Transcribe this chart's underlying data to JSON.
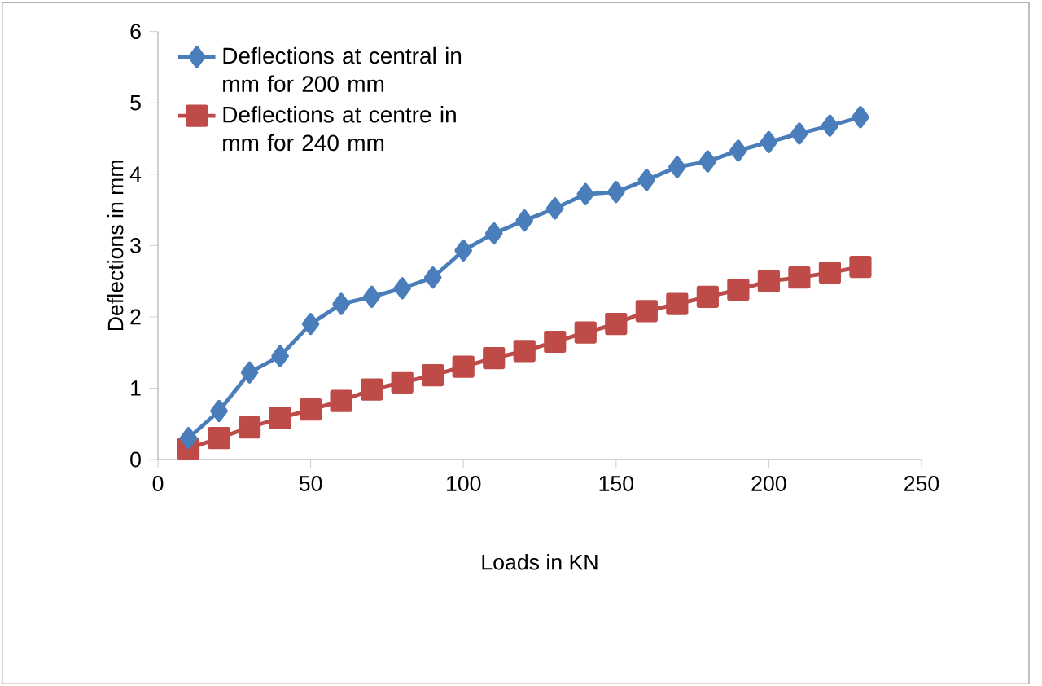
{
  "chart_data": {
    "type": "line",
    "xlabel": "Loads in KN",
    "ylabel": "Deflections  in mm",
    "x": [
      10,
      20,
      30,
      40,
      50,
      60,
      70,
      80,
      90,
      100,
      110,
      120,
      130,
      140,
      150,
      160,
      170,
      180,
      190,
      200,
      210,
      220,
      230
    ],
    "series": [
      {
        "name": "Deflections at central in mm for 200 mm",
        "color": "#4a7ebb",
        "marker": "diamond",
        "values": [
          0.3,
          0.68,
          1.22,
          1.45,
          1.9,
          2.18,
          2.28,
          2.4,
          2.55,
          2.93,
          3.17,
          3.35,
          3.52,
          3.72,
          3.75,
          3.92,
          4.1,
          4.18,
          4.33,
          4.45,
          4.57,
          4.68,
          4.8
        ]
      },
      {
        "name": "Deflections at centre in mm for 240 mm",
        "color": "#be4b48",
        "marker": "square",
        "values": [
          0.15,
          0.3,
          0.45,
          0.58,
          0.7,
          0.82,
          0.98,
          1.08,
          1.18,
          1.3,
          1.42,
          1.52,
          1.65,
          1.78,
          1.9,
          2.08,
          2.18,
          2.28,
          2.38,
          2.5,
          2.55,
          2.62,
          2.7
        ]
      }
    ],
    "xlim": [
      0,
      250
    ],
    "xticks": [
      0,
      50,
      100,
      150,
      200,
      250
    ],
    "ylim": [
      0,
      6
    ],
    "yticks": [
      0,
      1,
      2,
      3,
      4,
      5,
      6
    ],
    "grid": false,
    "legend": "top left",
    "line_style": "solid"
  }
}
